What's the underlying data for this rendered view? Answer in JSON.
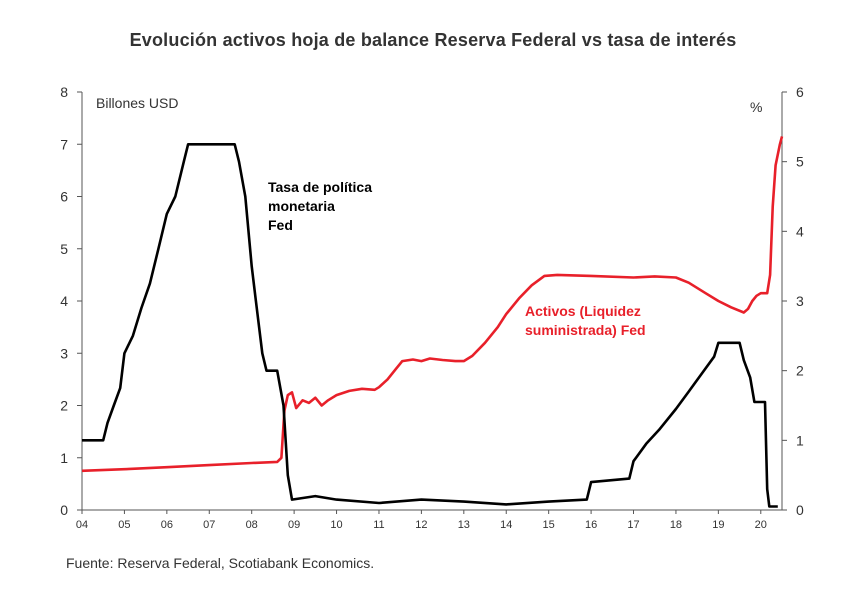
{
  "title": "Evolución activos hoja de balance Reserva Federal vs tasa de interés",
  "source": "Fuente: Reserva Federal, Scotiabank Economics.",
  "colors": {
    "assets": "#e8202a",
    "rate": "#000000",
    "axis": "#555555"
  },
  "chart_data": {
    "type": "line",
    "title": "Evolución activos hoja de balance Reserva Federal vs tasa de interés",
    "x_tick_labels": [
      "04",
      "05",
      "06",
      "07",
      "08",
      "09",
      "10",
      "11",
      "12",
      "13",
      "14",
      "15",
      "16",
      "17",
      "18",
      "19",
      "20"
    ],
    "xlim": [
      2004,
      2020.5
    ],
    "y_left": {
      "label": "Billones USD",
      "ylim": [
        0,
        8
      ],
      "ticks": [
        "0",
        "1",
        "2",
        "3",
        "4",
        "5",
        "6",
        "7",
        "8"
      ]
    },
    "y_right": {
      "label": "%",
      "ylim": [
        0,
        6
      ],
      "ticks": [
        "0",
        "1",
        "2",
        "3",
        "4",
        "5",
        "6"
      ]
    },
    "grid": false,
    "series": [
      {
        "name": "Activos  (Liquidez suministrada) Fed",
        "axis": "left",
        "color": "#e8202a",
        "points": [
          [
            2004.0,
            0.75
          ],
          [
            2005.0,
            0.78
          ],
          [
            2006.0,
            0.82
          ],
          [
            2007.0,
            0.86
          ],
          [
            2008.0,
            0.9
          ],
          [
            2008.6,
            0.92
          ],
          [
            2008.7,
            1.0
          ],
          [
            2008.77,
            1.9
          ],
          [
            2008.85,
            2.2
          ],
          [
            2008.95,
            2.25
          ],
          [
            2009.05,
            1.95
          ],
          [
            2009.2,
            2.1
          ],
          [
            2009.35,
            2.05
          ],
          [
            2009.5,
            2.15
          ],
          [
            2009.65,
            2.0
          ],
          [
            2009.8,
            2.1
          ],
          [
            2010.0,
            2.2
          ],
          [
            2010.3,
            2.28
          ],
          [
            2010.6,
            2.32
          ],
          [
            2010.9,
            2.3
          ],
          [
            2011.0,
            2.35
          ],
          [
            2011.2,
            2.5
          ],
          [
            2011.4,
            2.7
          ],
          [
            2011.55,
            2.85
          ],
          [
            2011.8,
            2.88
          ],
          [
            2012.0,
            2.85
          ],
          [
            2012.2,
            2.9
          ],
          [
            2012.5,
            2.87
          ],
          [
            2012.8,
            2.85
          ],
          [
            2013.0,
            2.85
          ],
          [
            2013.2,
            2.95
          ],
          [
            2013.5,
            3.2
          ],
          [
            2013.8,
            3.5
          ],
          [
            2014.0,
            3.75
          ],
          [
            2014.3,
            4.05
          ],
          [
            2014.6,
            4.3
          ],
          [
            2014.9,
            4.48
          ],
          [
            2015.2,
            4.5
          ],
          [
            2016.0,
            4.48
          ],
          [
            2017.0,
            4.45
          ],
          [
            2017.5,
            4.47
          ],
          [
            2018.0,
            4.45
          ],
          [
            2018.3,
            4.35
          ],
          [
            2018.7,
            4.15
          ],
          [
            2019.0,
            4.0
          ],
          [
            2019.3,
            3.88
          ],
          [
            2019.6,
            3.78
          ],
          [
            2019.7,
            3.85
          ],
          [
            2019.8,
            4.0
          ],
          [
            2019.9,
            4.1
          ],
          [
            2020.0,
            4.15
          ],
          [
            2020.15,
            4.15
          ],
          [
            2020.22,
            4.5
          ],
          [
            2020.28,
            5.8
          ],
          [
            2020.35,
            6.6
          ],
          [
            2020.45,
            7.0
          ],
          [
            2020.5,
            7.15
          ]
        ]
      },
      {
        "name": "Tasa de política monetaria Fed",
        "axis": "right",
        "color": "#000000",
        "points": [
          [
            2004.0,
            1.0
          ],
          [
            2004.5,
            1.0
          ],
          [
            2004.6,
            1.25
          ],
          [
            2004.75,
            1.5
          ],
          [
            2004.9,
            1.75
          ],
          [
            2005.0,
            2.25
          ],
          [
            2005.2,
            2.5
          ],
          [
            2005.4,
            2.9
          ],
          [
            2005.6,
            3.25
          ],
          [
            2005.8,
            3.75
          ],
          [
            2006.0,
            4.25
          ],
          [
            2006.2,
            4.5
          ],
          [
            2006.4,
            5.0
          ],
          [
            2006.5,
            5.25
          ],
          [
            2007.0,
            5.25
          ],
          [
            2007.6,
            5.25
          ],
          [
            2007.7,
            5.0
          ],
          [
            2007.85,
            4.5
          ],
          [
            2008.0,
            3.5
          ],
          [
            2008.1,
            3.0
          ],
          [
            2008.25,
            2.25
          ],
          [
            2008.35,
            2.0
          ],
          [
            2008.6,
            2.0
          ],
          [
            2008.75,
            1.5
          ],
          [
            2008.85,
            0.5
          ],
          [
            2008.95,
            0.15
          ],
          [
            2009.5,
            0.2
          ],
          [
            2010.0,
            0.15
          ],
          [
            2011.0,
            0.1
          ],
          [
            2012.0,
            0.15
          ],
          [
            2013.0,
            0.12
          ],
          [
            2014.0,
            0.08
          ],
          [
            2015.0,
            0.12
          ],
          [
            2015.9,
            0.15
          ],
          [
            2016.0,
            0.4
          ],
          [
            2016.9,
            0.45
          ],
          [
            2017.0,
            0.7
          ],
          [
            2017.3,
            0.95
          ],
          [
            2017.6,
            1.15
          ],
          [
            2018.0,
            1.45
          ],
          [
            2018.3,
            1.7
          ],
          [
            2018.6,
            1.95
          ],
          [
            2018.9,
            2.2
          ],
          [
            2019.0,
            2.4
          ],
          [
            2019.5,
            2.4
          ],
          [
            2019.6,
            2.15
          ],
          [
            2019.75,
            1.9
          ],
          [
            2019.85,
            1.55
          ],
          [
            2020.0,
            1.55
          ],
          [
            2020.1,
            1.55
          ],
          [
            2020.15,
            0.3
          ],
          [
            2020.2,
            0.05
          ],
          [
            2020.4,
            0.05
          ]
        ]
      }
    ],
    "annotations": [
      {
        "text": [
          "Tasa de política",
          "monetaria",
          "Fed"
        ],
        "color": "#000000"
      },
      {
        "text": [
          "Activos  (Liquidez",
          "suministrada) Fed"
        ],
        "color": "#e8202a"
      }
    ]
  }
}
